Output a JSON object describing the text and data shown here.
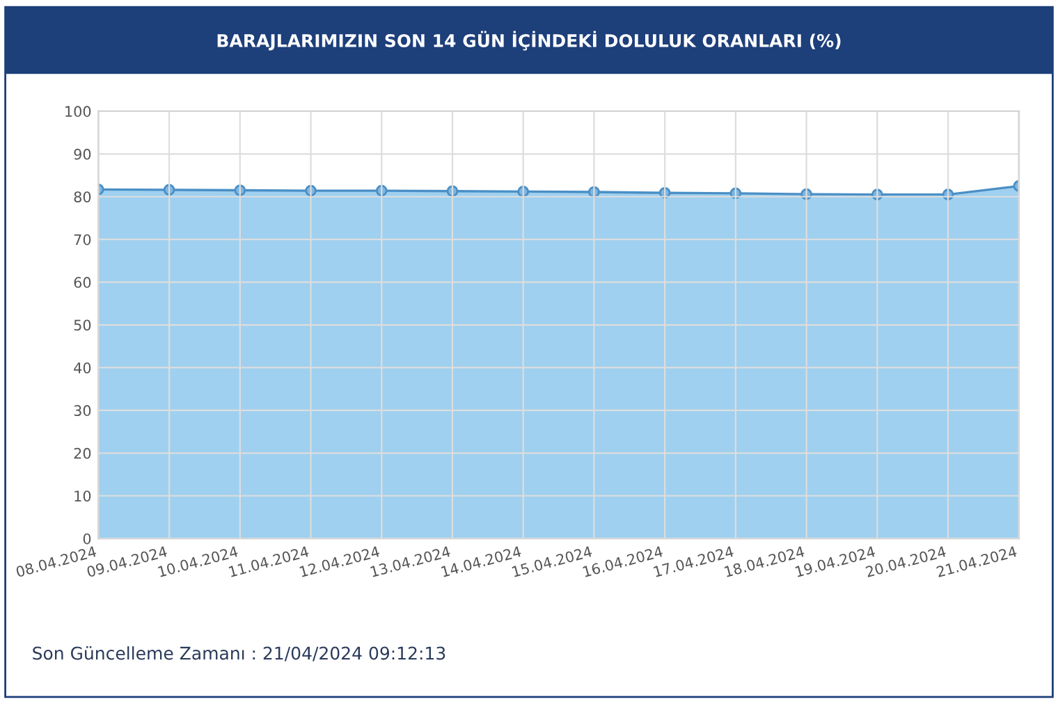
{
  "chart_data": {
    "type": "area",
    "title": "BARAJLARIMIZIN SON 14 GÜN İÇİNDEKİ DOLULUK ORANLARI (%)",
    "categories": [
      "08.04.2024",
      "09.04.2024",
      "10.04.2024",
      "11.04.2024",
      "12.04.2024",
      "13.04.2024",
      "14.04.2024",
      "15.04.2024",
      "16.04.2024",
      "17.04.2024",
      "18.04.2024",
      "19.04.2024",
      "20.04.2024",
      "21.04.2024"
    ],
    "series": [
      {
        "color": "#4a8fc6",
        "values": [
          81.7,
          81.6,
          81.5,
          81.4,
          81.4,
          81.3,
          81.2,
          81.1,
          80.9,
          80.8,
          80.6,
          80.5,
          80.5,
          82.5
        ]
      }
    ],
    "ylim": [
      0,
      100
    ],
    "yticks": [
      0,
      10,
      20,
      30,
      40,
      50,
      60,
      70,
      80,
      90,
      100
    ],
    "grid": true,
    "marker": "circle",
    "legend": false,
    "annotations": [
      "Son Güncelleme Zamanı : 21/04/2024 09:12:13"
    ]
  }
}
